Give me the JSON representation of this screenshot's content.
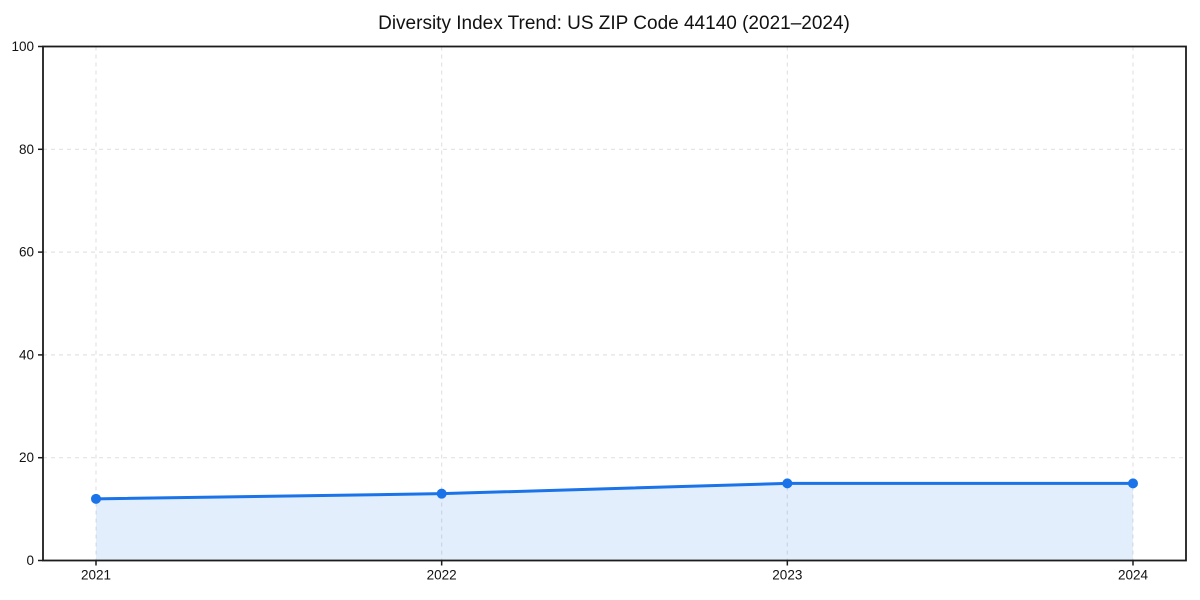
{
  "chart_data": {
    "type": "line",
    "title": "Diversity Index Trend: US ZIP Code 44140 (2021–2024)",
    "x": [
      2021,
      2022,
      2023,
      2024
    ],
    "values": [
      12,
      13,
      15,
      15
    ],
    "xlabel": "",
    "ylabel": "",
    "ylim": [
      0,
      100
    ],
    "yticks": [
      0,
      20,
      40,
      60,
      80,
      100
    ],
    "grid": true,
    "grid_style": "dashed",
    "legend": false,
    "area_fill": true,
    "marker": "circle"
  },
  "style": {
    "line_color": "#1a73e8",
    "marker_color": "#1a73e8",
    "fill_color": "#1a73e8",
    "fill_opacity": 0.12,
    "grid_color": "#e3e3e3",
    "frame_color": "#1c1c1c",
    "text_color": "#111111",
    "background": "#ffffff"
  }
}
